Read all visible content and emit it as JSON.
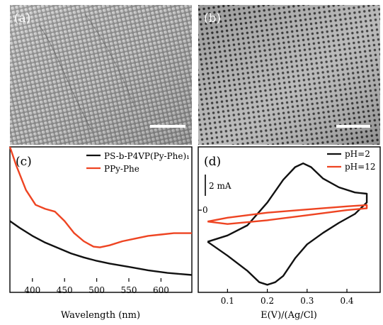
{
  "panels": {
    "a": {
      "label": "(a)"
    },
    "b": {
      "label": "(b)"
    },
    "c": {
      "label": "(c)"
    },
    "d": {
      "label": "(d)"
    }
  },
  "chart_data": [
    {
      "panel": "c",
      "type": "line",
      "xlabel": "Wavelength (nm)",
      "ylabel": "",
      "xlim": [
        365,
        648
      ],
      "ylim": [
        0,
        1
      ],
      "x_ticks": [
        400,
        450,
        500,
        550,
        600
      ],
      "y_ticks": [],
      "legend_position": "top-right",
      "series": [
        {
          "name": "PS-b-P4VP(Py-Phe)₁",
          "color": "#111111",
          "x": [
            365,
            380,
            400,
            420,
            440,
            460,
            480,
            500,
            520,
            550,
            580,
            610,
            648
          ],
          "y": [
            0.45,
            0.4,
            0.34,
            0.29,
            0.25,
            0.21,
            0.18,
            0.155,
            0.135,
            0.11,
            0.085,
            0.065,
            0.05
          ]
        },
        {
          "name": "PPy-Phe",
          "color": "#ee4422",
          "x": [
            365,
            375,
            390,
            405,
            420,
            435,
            450,
            465,
            480,
            495,
            505,
            520,
            540,
            560,
            580,
            600,
            620,
            640,
            648
          ],
          "y": [
            1.0,
            0.86,
            0.68,
            0.57,
            0.54,
            0.52,
            0.45,
            0.36,
            0.3,
            0.26,
            0.255,
            0.27,
            0.3,
            0.32,
            0.34,
            0.35,
            0.36,
            0.36,
            0.36
          ]
        }
      ]
    },
    {
      "panel": "d",
      "type": "line",
      "xlabel": "E(V)/(Ag/Cl)",
      "ylabel": "",
      "xlim": [
        0.03,
        0.48
      ],
      "ylim": [
        -6.5,
        5
      ],
      "x_ticks": [
        0.1,
        0.2,
        0.3,
        0.4
      ],
      "y_ticks": [
        0
      ],
      "y_tick_labels": [
        "0"
      ],
      "scale_bar_label": "2 mA",
      "scale_bar_value": 2,
      "legend_position": "top-right",
      "series": [
        {
          "name": "pH=2",
          "color": "#111111",
          "x": [
            0.05,
            0.1,
            0.15,
            0.2,
            0.24,
            0.27,
            0.29,
            0.31,
            0.34,
            0.38,
            0.42,
            0.45,
            0.45,
            0.42,
            0.38,
            0.34,
            0.3,
            0.27,
            0.24,
            0.22,
            0.2,
            0.18,
            0.15,
            0.1,
            0.05
          ],
          "y": [
            -2.5,
            -2.0,
            -1.2,
            0.6,
            2.4,
            3.4,
            3.7,
            3.4,
            2.5,
            1.8,
            1.4,
            1.3,
            0.6,
            -0.3,
            -1.0,
            -1.8,
            -2.7,
            -3.8,
            -5.2,
            -5.7,
            -5.9,
            -5.7,
            -4.8,
            -3.6,
            -2.5
          ]
        },
        {
          "name": "pH=12",
          "color": "#ee4422",
          "x": [
            0.05,
            0.1,
            0.2,
            0.3,
            0.4,
            0.45,
            0.45,
            0.4,
            0.3,
            0.2,
            0.1,
            0.05
          ],
          "y": [
            -0.9,
            -0.6,
            -0.2,
            0.05,
            0.3,
            0.4,
            0.15,
            0.0,
            -0.4,
            -0.8,
            -1.1,
            -0.9
          ]
        }
      ]
    }
  ]
}
